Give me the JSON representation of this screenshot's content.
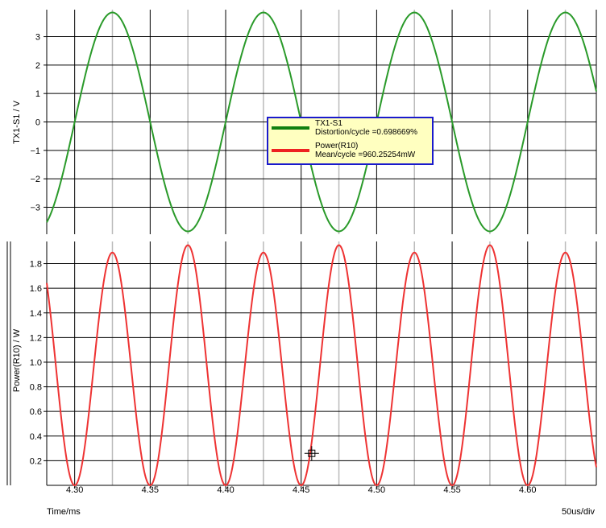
{
  "colors": {
    "trace_voltage": "#2a9a2a",
    "trace_power": "#ee3333",
    "legend_border": "#1a1acc",
    "legend_bg": "#ffffc0"
  },
  "footer": {
    "x_label": "Time/ms",
    "scale": "50us/div"
  },
  "legend": [
    {
      "name": "TX1-S1",
      "stat": "Distortion/cycle =0.698669%",
      "color": "#108010"
    },
    {
      "name": "Power(R10)",
      "stat": "Mean/cycle =960.25254mW",
      "color": "#ee2222"
    }
  ],
  "chart_data": [
    {
      "type": "line",
      "ylabel": "TX1-S1 / V",
      "xlim": [
        4.2815,
        4.6455
      ],
      "ylim": [
        -3.95,
        3.95
      ],
      "yticks": [
        3,
        2,
        1,
        0,
        -1,
        -2,
        -3
      ],
      "yticklabels": [
        "3",
        "2",
        "1",
        "0",
        "−1",
        "−2",
        "−3"
      ],
      "series": [
        {
          "name": "TX1-S1",
          "amplitude": 3.85,
          "frequency_khz": 10,
          "peak_times_ms": [
            4.325,
            4.425,
            4.525,
            4.625
          ]
        }
      ]
    },
    {
      "type": "line",
      "ylabel": "Power(R10) / W",
      "xlabel": "Time/ms",
      "xlim": [
        4.2815,
        4.6455
      ],
      "ylim": [
        0.0,
        1.98
      ],
      "yticks": [
        0.2,
        0.4,
        0.6,
        0.8,
        1.0,
        1.2,
        1.4,
        1.6,
        1.8
      ],
      "yticklabels": [
        "0.2",
        "0.4",
        "0.6",
        "0.8",
        "1.0",
        "1.2",
        "1.4",
        "1.6",
        "1.8"
      ],
      "xticks": [
        4.3,
        4.35,
        4.4,
        4.45,
        4.5,
        4.55,
        4.6
      ],
      "xticklabels": [
        "4.30",
        "4.35",
        "4.40",
        "4.45",
        "4.50",
        "4.55",
        "4.60"
      ],
      "series": [
        {
          "name": "Power(R10)",
          "peak_values": [
            1.89,
            1.95
          ],
          "minimum": 0.0,
          "frequency_khz": 20
        }
      ],
      "cursor": {
        "x": 4.457,
        "y": 0.26
      }
    }
  ]
}
